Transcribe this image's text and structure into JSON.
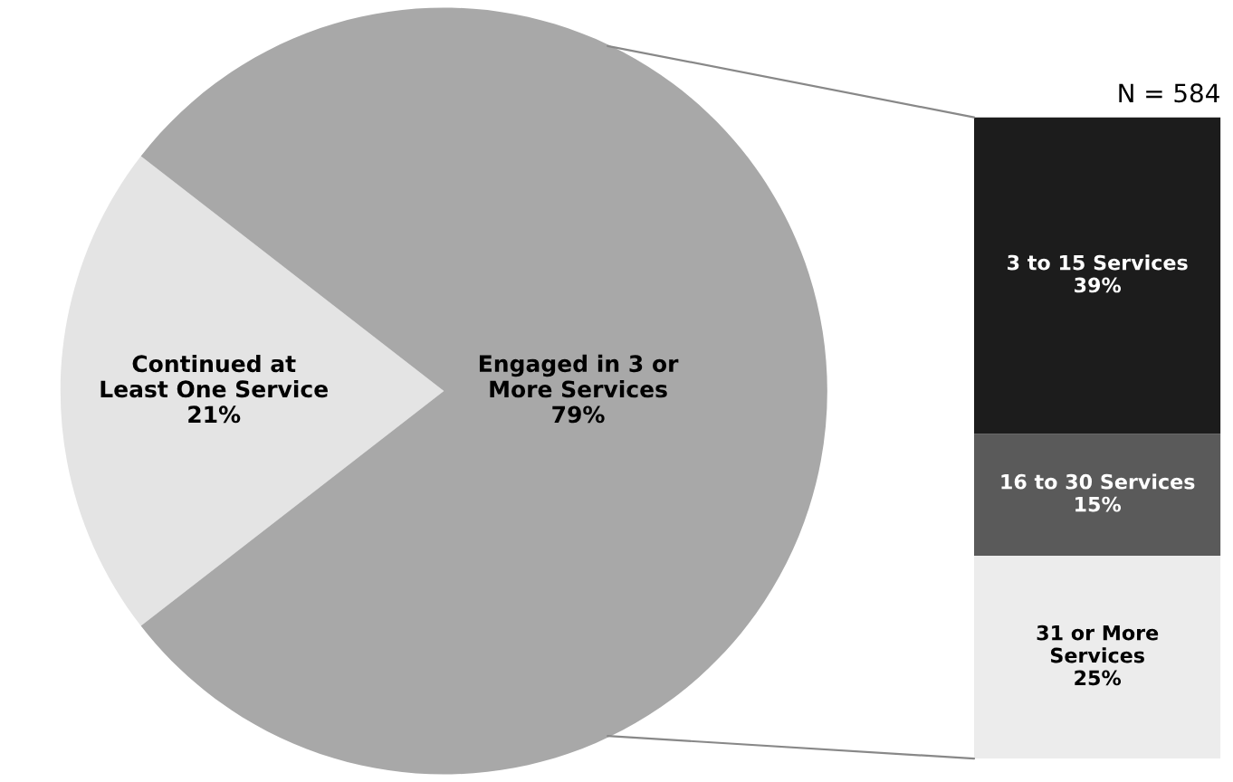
{
  "chart_data": [
    {
      "type": "pie",
      "categories": [
        "Continued at\nLeast One Service",
        "Engaged in 3 or\nMore Services"
      ],
      "values": [
        21,
        79
      ],
      "colors": [
        "#e4e4e4",
        "#a8a8a8"
      ],
      "value_labels": [
        "21%",
        "79%"
      ]
    },
    {
      "type": "bar",
      "title": "N = 584",
      "stacked": true,
      "categories": [
        null
      ],
      "ylim": [
        0,
        79
      ],
      "series": [
        {
          "name": "31 or More\nServices",
          "color": "#ececec",
          "values": [
            25
          ],
          "value_labels": [
            "25%"
          ]
        },
        {
          "name": "16 to 30 Services",
          "color": "#5a5a5a",
          "values": [
            15
          ],
          "value_labels": [
            "15%"
          ]
        },
        {
          "name": "3 to 15 Services",
          "color": "#1c1c1c",
          "values": [
            39
          ],
          "value_labels": [
            "39%"
          ]
        }
      ]
    }
  ]
}
